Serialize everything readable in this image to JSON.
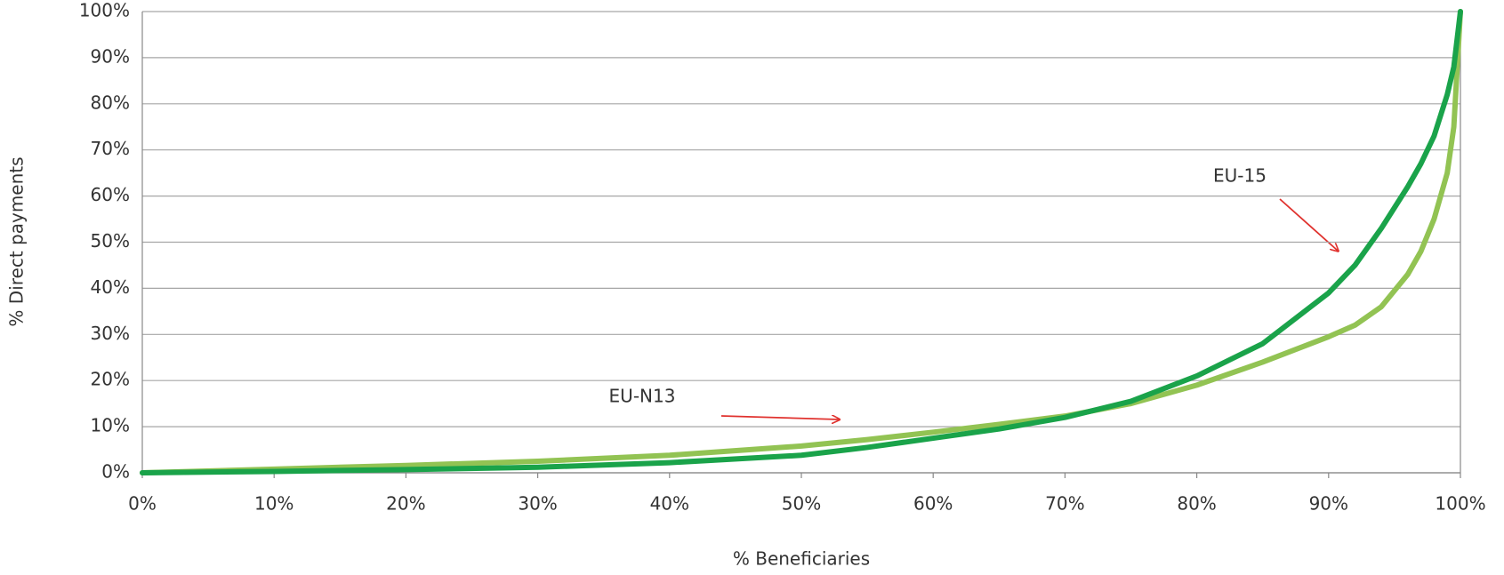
{
  "chart_data": {
    "type": "line",
    "xlabel": "% Beneficiaries",
    "ylabel": "% Direct payments",
    "x": [
      0,
      10,
      20,
      30,
      40,
      50,
      55,
      60,
      65,
      70,
      75,
      80,
      85,
      90,
      92,
      94,
      96,
      97,
      98,
      99,
      99.5,
      100
    ],
    "series": [
      {
        "name": "EU-15",
        "color": "#1aa34a",
        "values": [
          0,
          0.3,
          0.7,
          1.2,
          2.2,
          3.8,
          5.5,
          7.5,
          9.5,
          12,
          15.5,
          21,
          28,
          39,
          45,
          53,
          62,
          67,
          73,
          82,
          88,
          100
        ]
      },
      {
        "name": "EU-N13",
        "color": "#92c353",
        "values": [
          0,
          0.8,
          1.6,
          2.5,
          3.8,
          5.8,
          7.2,
          8.8,
          10.5,
          12.3,
          15,
          19,
          24,
          29.5,
          32,
          36,
          43,
          48,
          55,
          65,
          75,
          100
        ]
      }
    ],
    "annotations": [
      {
        "text": "EU-15"
      },
      {
        "text": "EU-N13"
      }
    ],
    "xlim": [
      0,
      100
    ],
    "ylim": [
      0,
      100
    ],
    "xticks": [
      {
        "value": 0,
        "label": "0%"
      },
      {
        "value": 10,
        "label": "10%"
      },
      {
        "value": 20,
        "label": "20%"
      },
      {
        "value": 30,
        "label": "30%"
      },
      {
        "value": 40,
        "label": "40%"
      },
      {
        "value": 50,
        "label": "50%"
      },
      {
        "value": 60,
        "label": "60%"
      },
      {
        "value": 70,
        "label": "70%"
      },
      {
        "value": 80,
        "label": "80%"
      },
      {
        "value": 90,
        "label": "90%"
      },
      {
        "value": 100,
        "label": "100%"
      }
    ],
    "yticks": [
      {
        "value": 0,
        "label": "0%"
      },
      {
        "value": 10,
        "label": "10%"
      },
      {
        "value": 20,
        "label": "20%"
      },
      {
        "value": 30,
        "label": "30%"
      },
      {
        "value": 40,
        "label": "40%"
      },
      {
        "value": 50,
        "label": "50%"
      },
      {
        "value": 60,
        "label": "60%"
      },
      {
        "value": 70,
        "label": "70%"
      },
      {
        "value": 80,
        "label": "80%"
      },
      {
        "value": 90,
        "label": "90%"
      },
      {
        "value": 100,
        "label": "100%"
      }
    ],
    "grid": true
  }
}
